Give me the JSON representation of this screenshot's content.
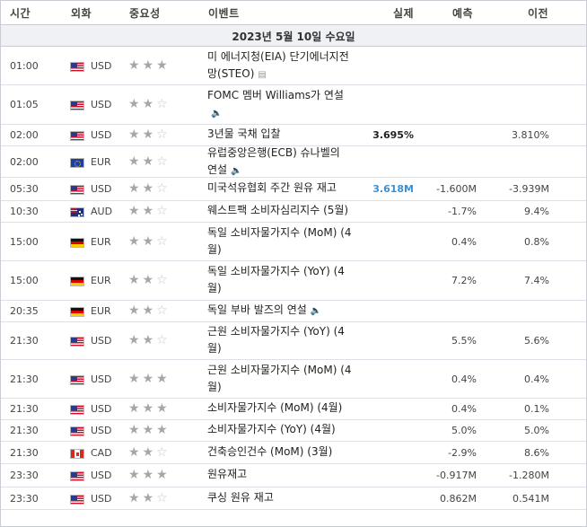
{
  "header": {
    "time": "시간",
    "currency": "외화",
    "importance": "중요성",
    "event": "이벤트",
    "actual": "실제",
    "forecast": "예측",
    "previous": "이전"
  },
  "date_label": "2023년 5월 10일 수요일",
  "colors": {
    "actual_better": "#3a8fd6",
    "actual_worse": "#cc0000",
    "actual_neutral": "#222222"
  },
  "rows": [
    {
      "time": "01:00",
      "flag": "us-flag",
      "currency": "USD",
      "stars": 3,
      "event_lines": [
        "미 에너지청(EIA) 단기에너지전",
        "망(STEO)"
      ],
      "icon": "document-icon",
      "actual": "",
      "actual_color": "neutral",
      "forecast": "",
      "previous": ""
    },
    {
      "time": "01:05",
      "flag": "us-flag",
      "currency": "USD",
      "stars": 2,
      "event_lines": [
        "FOMC 멤버 Williams가 연설",
        ""
      ],
      "icon": "speaker-icon",
      "actual": "",
      "actual_color": "neutral",
      "forecast": "",
      "previous": ""
    },
    {
      "time": "02:00",
      "flag": "us-flag",
      "currency": "USD",
      "stars": 2,
      "event_lines": [
        "3년물 국채 입찰"
      ],
      "icon": "",
      "actual": "3.695%",
      "actual_color": "neutral",
      "forecast": "",
      "previous": "3.810%"
    },
    {
      "time": "02:00",
      "flag": "eu-flag",
      "currency": "EUR",
      "stars": 2,
      "event_lines": [
        "유럽중앙은행(ECB) 슈나벨의",
        "연설"
      ],
      "icon": "speaker-icon",
      "actual": "",
      "actual_color": "neutral",
      "forecast": "",
      "previous": ""
    },
    {
      "time": "05:30",
      "flag": "us-flag",
      "currency": "USD",
      "stars": 2,
      "event_lines": [
        "미국석유협회 주간 원유 재고"
      ],
      "icon": "",
      "actual": "3.618M",
      "actual_color": "better",
      "forecast": "-1.600M",
      "previous": "-3.939M"
    },
    {
      "time": "10:30",
      "flag": "au-flag",
      "currency": "AUD",
      "stars": 2,
      "event_lines": [
        "웨스트팩 소비자심리지수 (5월)"
      ],
      "icon": "",
      "actual": "",
      "actual_color": "neutral",
      "forecast": "-1.7%",
      "previous": "9.4%"
    },
    {
      "time": "15:00",
      "flag": "de-flag",
      "currency": "EUR",
      "stars": 2,
      "event_lines": [
        "독일 소비자물가지수 (MoM) (4",
        "월)"
      ],
      "icon": "",
      "actual": "",
      "actual_color": "neutral",
      "forecast": "0.4%",
      "previous": "0.8%"
    },
    {
      "time": "15:00",
      "flag": "de-flag",
      "currency": "EUR",
      "stars": 2,
      "event_lines": [
        "독일 소비자물가지수 (YoY) (4",
        "월)"
      ],
      "icon": "",
      "actual": "",
      "actual_color": "neutral",
      "forecast": "7.2%",
      "previous": "7.4%"
    },
    {
      "time": "20:35",
      "flag": "de-flag",
      "currency": "EUR",
      "stars": 2,
      "event_lines": [
        "독일 부바 발즈의 연설"
      ],
      "icon": "speaker-icon",
      "actual": "",
      "actual_color": "neutral",
      "forecast": "",
      "previous": ""
    },
    {
      "time": "21:30",
      "flag": "us-flag",
      "currency": "USD",
      "stars": 2,
      "event_lines": [
        "근원 소비자물가지수 (YoY) (4",
        "월)"
      ],
      "icon": "",
      "actual": "",
      "actual_color": "neutral",
      "forecast": "5.5%",
      "previous": "5.6%"
    },
    {
      "time": "21:30",
      "flag": "us-flag",
      "currency": "USD",
      "stars": 3,
      "event_lines": [
        "근원 소비자물가지수 (MoM) (4",
        "월)"
      ],
      "icon": "",
      "actual": "",
      "actual_color": "neutral",
      "forecast": "0.4%",
      "previous": "0.4%"
    },
    {
      "time": "21:30",
      "flag": "us-flag",
      "currency": "USD",
      "stars": 3,
      "event_lines": [
        "소비자물가지수 (MoM) (4월)"
      ],
      "icon": "",
      "actual": "",
      "actual_color": "neutral",
      "forecast": "0.4%",
      "previous": "0.1%"
    },
    {
      "time": "21:30",
      "flag": "us-flag",
      "currency": "USD",
      "stars": 3,
      "event_lines": [
        "소비자물가지수 (YoY) (4월)"
      ],
      "icon": "",
      "actual": "",
      "actual_color": "neutral",
      "forecast": "5.0%",
      "previous": "5.0%"
    },
    {
      "time": "21:30",
      "flag": "ca-flag",
      "currency": "CAD",
      "stars": 2,
      "event_lines": [
        "건축승인건수 (MoM) (3월)"
      ],
      "icon": "",
      "actual": "",
      "actual_color": "neutral",
      "forecast": "-2.9%",
      "previous": "8.6%"
    },
    {
      "time": "23:30",
      "flag": "us-flag",
      "currency": "USD",
      "stars": 3,
      "event_lines": [
        "원유재고"
      ],
      "icon": "",
      "actual": "",
      "actual_color": "neutral",
      "forecast": "-0.917M",
      "previous": "-1.280M"
    },
    {
      "time": "23:30",
      "flag": "us-flag",
      "currency": "USD",
      "stars": 2,
      "event_lines": [
        "쿠싱 원유 재고"
      ],
      "icon": "",
      "actual": "",
      "actual_color": "neutral",
      "forecast": "0.862M",
      "previous": "0.541M"
    }
  ]
}
